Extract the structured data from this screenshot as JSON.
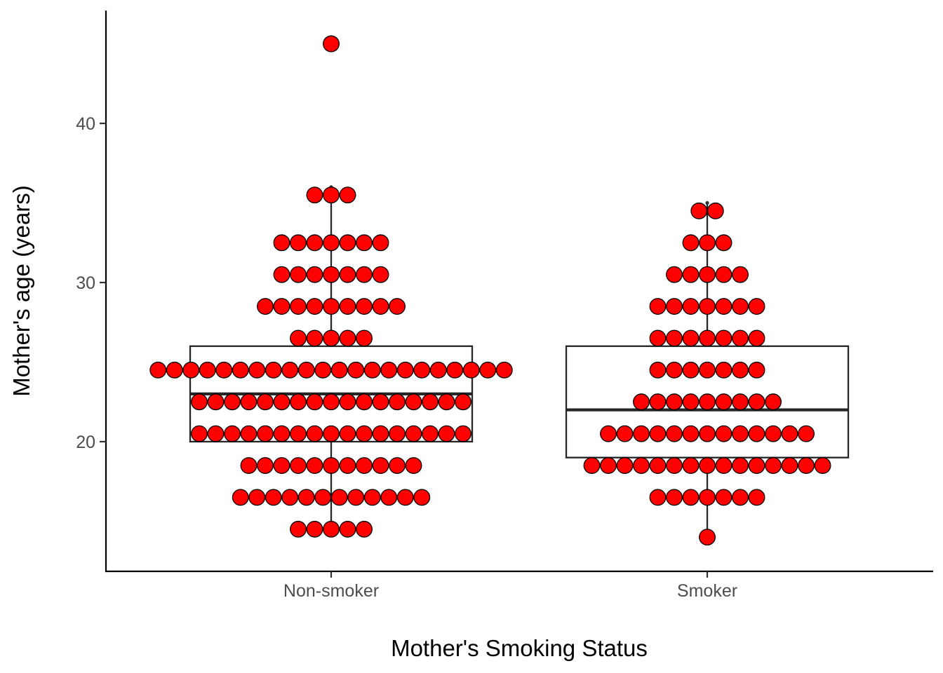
{
  "chart_data": {
    "type": "boxplot+dotplot",
    "xlabel": "Mother's Smoking Status",
    "ylabel": "Mother's age (years)",
    "ylim": [
      12,
      47
    ],
    "yticks": [
      20,
      30,
      40
    ],
    "grid": false,
    "legend": "none",
    "categories": [
      "Non-smoker",
      "Smoker"
    ],
    "colors": {
      "dot_fill": "#ff0000",
      "dot_stroke": "#000000",
      "box_stroke": "#262626",
      "box_fill": "#ffffff"
    },
    "groups": [
      {
        "category": "Non-smoker",
        "box": {
          "lower_whisker": 14.5,
          "q1": 20,
          "median": 23,
          "q3": 26,
          "upper_whisker": 36
        },
        "outliers": [
          45
        ],
        "dot_bins": [
          {
            "y": 14.5,
            "count": 5
          },
          {
            "y": 16.5,
            "count": 12
          },
          {
            "y": 18.5,
            "count": 11
          },
          {
            "y": 20.5,
            "count": 17
          },
          {
            "y": 22.5,
            "count": 17
          },
          {
            "y": 24.5,
            "count": 22
          },
          {
            "y": 26.5,
            "count": 5
          },
          {
            "y": 28.5,
            "count": 9
          },
          {
            "y": 30.5,
            "count": 7
          },
          {
            "y": 32.5,
            "count": 7
          },
          {
            "y": 35.5,
            "count": 3
          },
          {
            "y": 45,
            "count": 1
          }
        ]
      },
      {
        "category": "Smoker",
        "box": {
          "lower_whisker": 14,
          "q1": 19,
          "median": 22,
          "q3": 26,
          "upper_whisker": 35
        },
        "outliers": [],
        "dot_bins": [
          {
            "y": 14,
            "count": 1
          },
          {
            "y": 16.5,
            "count": 7
          },
          {
            "y": 18.5,
            "count": 15
          },
          {
            "y": 20.5,
            "count": 13
          },
          {
            "y": 22.5,
            "count": 9
          },
          {
            "y": 24.5,
            "count": 7
          },
          {
            "y": 26.5,
            "count": 7
          },
          {
            "y": 28.5,
            "count": 7
          },
          {
            "y": 30.5,
            "count": 5
          },
          {
            "y": 32.5,
            "count": 3
          },
          {
            "y": 34.5,
            "count": 2
          }
        ]
      }
    ]
  }
}
